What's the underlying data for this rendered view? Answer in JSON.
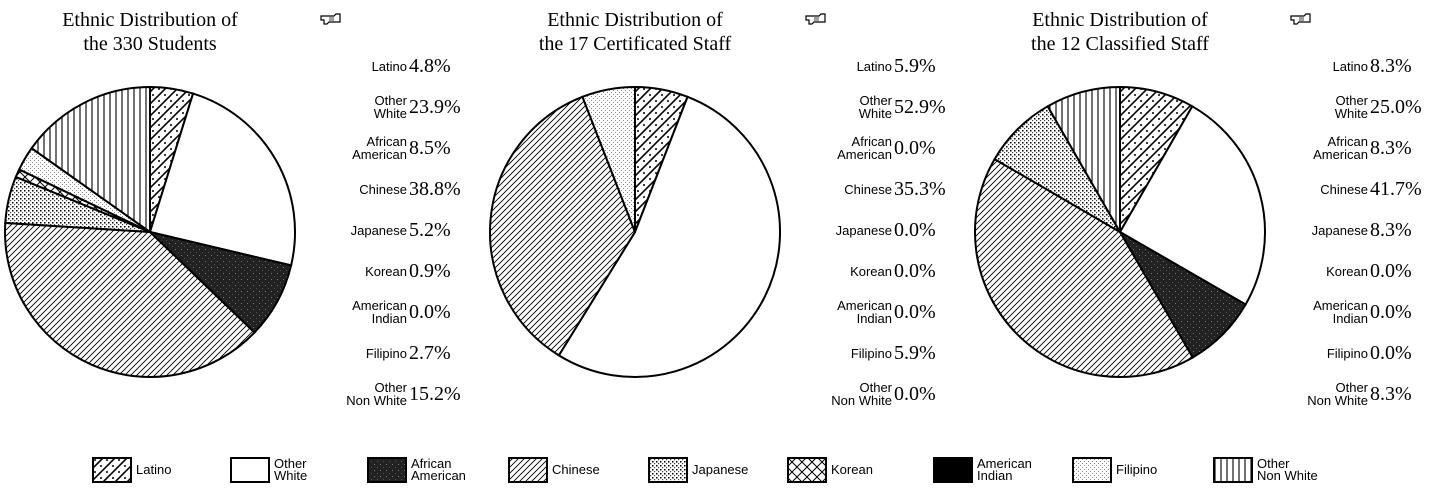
{
  "chart_data": [
    {
      "type": "pie",
      "title_lines": [
        "Ethnic Distribution of",
        "the 330 Students"
      ],
      "slices": [
        {
          "name": [
            "Latino"
          ],
          "label": "4.8%",
          "value": 4.8,
          "pattern": "latino"
        },
        {
          "name": [
            "Other",
            "White"
          ],
          "label": "23.9%",
          "value": 23.9,
          "pattern": "white"
        },
        {
          "name": [
            "African",
            "American"
          ],
          "label": "8.5%",
          "value": 8.5,
          "pattern": "african"
        },
        {
          "name": [
            "Chinese"
          ],
          "label": "38.8%",
          "value": 38.8,
          "pattern": "chinese"
        },
        {
          "name": [
            "Japanese"
          ],
          "label": "5.2%",
          "value": 5.2,
          "pattern": "japanese"
        },
        {
          "name": [
            "Korean"
          ],
          "label": "0.9%",
          "value": 0.9,
          "pattern": "korean"
        },
        {
          "name": [
            "American",
            "Indian"
          ],
          "label": "0.0%",
          "value": 0.0,
          "pattern": "indian"
        },
        {
          "name": [
            "Filipino"
          ],
          "label": "2.7%",
          "value": 2.7,
          "pattern": "filipino"
        },
        {
          "name": [
            "Other",
            "Non White"
          ],
          "label": "15.2%",
          "value": 15.2,
          "pattern": "nonwhite"
        }
      ]
    },
    {
      "type": "pie",
      "title_lines": [
        "Ethnic Distribution of",
        "the 17 Certificated Staff"
      ],
      "slices": [
        {
          "name": [
            "Latino"
          ],
          "label": "5.9%",
          "value": 5.9,
          "pattern": "latino"
        },
        {
          "name": [
            "Other",
            "White"
          ],
          "label": "52.9%",
          "value": 52.9,
          "pattern": "white"
        },
        {
          "name": [
            "African",
            "American"
          ],
          "label": "0.0%",
          "value": 0.0,
          "pattern": "african"
        },
        {
          "name": [
            "Chinese"
          ],
          "label": "35.3%",
          "value": 35.3,
          "pattern": "chinese"
        },
        {
          "name": [
            "Japanese"
          ],
          "label": "0.0%",
          "value": 0.0,
          "pattern": "japanese"
        },
        {
          "name": [
            "Korean"
          ],
          "label": "0.0%",
          "value": 0.0,
          "pattern": "korean"
        },
        {
          "name": [
            "American",
            "Indian"
          ],
          "label": "0.0%",
          "value": 0.0,
          "pattern": "indian"
        },
        {
          "name": [
            "Filipino"
          ],
          "label": "5.9%",
          "value": 5.9,
          "pattern": "filipino"
        },
        {
          "name": [
            "Other",
            "Non White"
          ],
          "label": "0.0%",
          "value": 0.0,
          "pattern": "nonwhite"
        }
      ]
    },
    {
      "type": "pie",
      "title_lines": [
        "Ethnic Distribution of",
        "the 12 Classified Staff"
      ],
      "slices": [
        {
          "name": [
            "Latino"
          ],
          "label": "8.3%",
          "value": 8.3,
          "pattern": "latino"
        },
        {
          "name": [
            "Other",
            "White"
          ],
          "label": "25.0%",
          "value": 25.0,
          "pattern": "white"
        },
        {
          "name": [
            "African",
            "American"
          ],
          "label": "8.3%",
          "value": 8.3,
          "pattern": "african"
        },
        {
          "name": [
            "Chinese"
          ],
          "label": "41.7%",
          "value": 41.7,
          "pattern": "chinese"
        },
        {
          "name": [
            "Japanese"
          ],
          "label": "8.3%",
          "value": 8.3,
          "pattern": "japanese"
        },
        {
          "name": [
            "Korean"
          ],
          "label": "0.0%",
          "value": 0.0,
          "pattern": "korean"
        },
        {
          "name": [
            "American",
            "Indian"
          ],
          "label": "0.0%",
          "value": 0.0,
          "pattern": "indian"
        },
        {
          "name": [
            "Filipino"
          ],
          "label": "0.0%",
          "value": 0.0,
          "pattern": "filipino"
        },
        {
          "name": [
            "Other",
            "Non White"
          ],
          "label": "8.3%",
          "value": 8.3,
          "pattern": "nonwhite"
        }
      ]
    }
  ],
  "legend": {
    "placement": "bottom",
    "items": [
      {
        "name": [
          "Latino"
        ],
        "pattern": "latino"
      },
      {
        "name": [
          "Other",
          "White"
        ],
        "pattern": "white"
      },
      {
        "name": [
          "African",
          "American"
        ],
        "pattern": "african"
      },
      {
        "name": [
          "Chinese"
        ],
        "pattern": "chinese"
      },
      {
        "name": [
          "Japanese"
        ],
        "pattern": "japanese"
      },
      {
        "name": [
          "Korean"
        ],
        "pattern": "korean"
      },
      {
        "name": [
          "American",
          "Indian"
        ],
        "pattern": "indian"
      },
      {
        "name": [
          "Filipino"
        ],
        "pattern": "filipino"
      },
      {
        "name": [
          "Other",
          "Non White"
        ],
        "pattern": "nonwhite"
      }
    ]
  },
  "pointer_icon": "pointing-hand-icon"
}
